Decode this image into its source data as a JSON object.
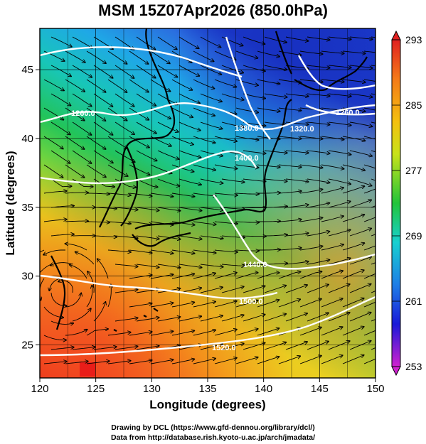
{
  "title": "MSM 15Z07Apr2026 (850.0hPa)",
  "map": {
    "xaxis": {
      "label": "Longitude (degrees)",
      "ticks": [
        "120",
        "125",
        "130",
        "135",
        "140",
        "145",
        "150"
      ]
    },
    "yaxis": {
      "label": "Latitude  (degrees)",
      "ticks": [
        "25",
        "30",
        "35",
        "40",
        "45"
      ]
    },
    "contour_labels": [
      "1260.0",
      "1320.0",
      "1380.0",
      "1400.0",
      "1440.0",
      "1500.0",
      "1520.0",
      "1260.0"
    ],
    "colorbar": {
      "labels": [
        "293",
        "285",
        "277",
        "269",
        "261",
        "253"
      ]
    }
  },
  "credits": {
    "line1": "Drawing by DCL (https://www.gfd-dennou.org/library/dcl/)",
    "line2": "Data from http://database.rish.kyoto-u.ac.jp/arch/jmadata/"
  }
}
